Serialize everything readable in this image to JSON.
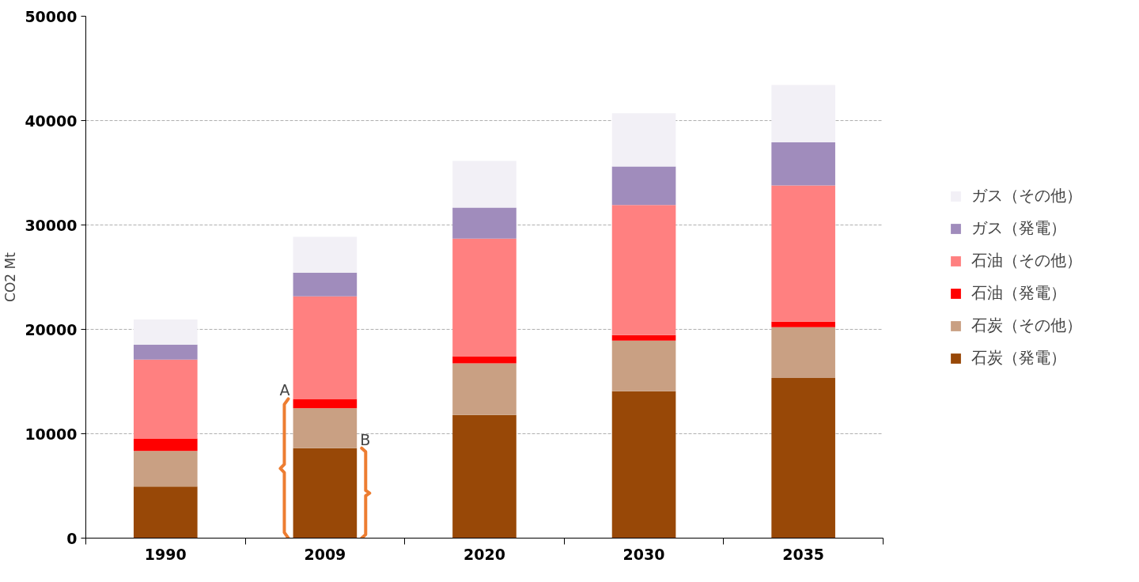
{
  "chart_data": {
    "type": "bar",
    "stacked": true,
    "ylabel": "CO2 Mt",
    "categories": [
      "1990",
      "2009",
      "2020",
      "2030",
      "2035"
    ],
    "series": [
      {
        "name": "石炭（発電）",
        "color": "#984807",
        "values": [
          4950,
          8620,
          11800,
          14080,
          15340
        ]
      },
      {
        "name": "石炭（その他）",
        "color": "#c9a083",
        "values": [
          3400,
          3820,
          4940,
          4840,
          4860
        ]
      },
      {
        "name": "石油（発電）",
        "color": "#ff0000",
        "values": [
          1200,
          900,
          690,
          540,
          540
        ]
      },
      {
        "name": "石油（その他）",
        "color": "#ff8080",
        "values": [
          7550,
          9830,
          11270,
          12460,
          13050
        ]
      },
      {
        "name": "ガス（発電）",
        "color": "#a08cbc",
        "values": [
          1450,
          2260,
          2960,
          3680,
          4120
        ]
      },
      {
        "name": "ガス（その他）",
        "color": "#f2f0f6",
        "values": [
          2400,
          3430,
          4470,
          5110,
          5500
        ]
      }
    ],
    "ylim": [
      0,
      50000
    ],
    "yticks": [
      0,
      10000,
      20000,
      30000,
      40000,
      50000
    ],
    "grid": "y",
    "legend": "right",
    "annotations": [
      {
        "text": "A",
        "x": "2009",
        "y": 13340
      },
      {
        "text": "B",
        "x": "2009",
        "y": 8620
      }
    ]
  }
}
